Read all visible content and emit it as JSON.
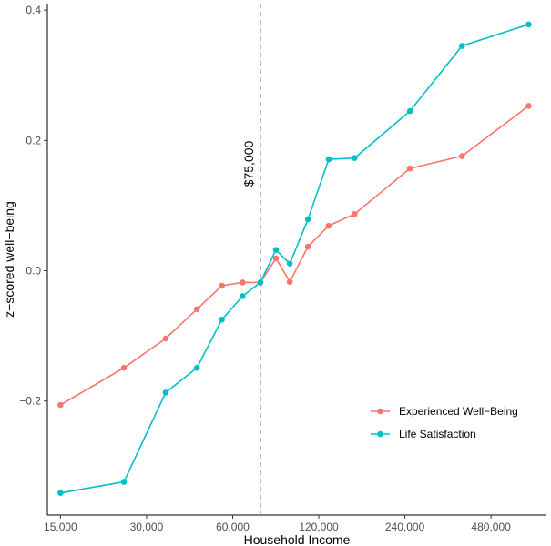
{
  "chart_data": {
    "type": "line",
    "title": "",
    "xlabel": "Household Income",
    "ylabel": "z−scored well−being",
    "x_scale": "log",
    "x_ticks": [
      15000,
      30000,
      60000,
      120000,
      240000,
      480000
    ],
    "x_tick_labels": [
      "15,000",
      "30,000",
      "60,000",
      "120,000",
      "240,000",
      "480,000"
    ],
    "xlim": [
      13500,
      750000
    ],
    "y_ticks": [
      -0.2,
      0.0,
      0.2,
      0.4
    ],
    "y_tick_labels": [
      "−0.2",
      "0.0",
      "0.2",
      "0.4"
    ],
    "ylim": [
      -0.375,
      0.41
    ],
    "grid": false,
    "legend_position": "bottom-right",
    "annotation": {
      "label": "$75,000",
      "x": 75000,
      "style": "dashed-vertical-line"
    },
    "colors": {
      "Experienced Well−Being": "#f8766d",
      "Life Satisfaction": "#00bfc4"
    },
    "series": [
      {
        "name": "Experienced Well−Being",
        "x": [
          15000,
          25000,
          35000,
          45000,
          55000,
          65000,
          75000,
          85000,
          95000,
          110000,
          130000,
          160000,
          250000,
          380000,
          650000
        ],
        "y": [
          -0.206,
          -0.149,
          -0.104,
          -0.059,
          -0.023,
          -0.018,
          -0.018,
          0.019,
          -0.017,
          0.037,
          0.069,
          0.087,
          0.157,
          0.176,
          0.253
        ]
      },
      {
        "name": "Life Satisfaction",
        "x": [
          15000,
          25000,
          35000,
          45000,
          55000,
          65000,
          75000,
          85000,
          95000,
          110000,
          130000,
          160000,
          250000,
          380000,
          650000
        ],
        "y": [
          -0.341,
          -0.324,
          -0.187,
          -0.149,
          -0.075,
          -0.039,
          -0.018,
          0.032,
          0.011,
          0.079,
          0.171,
          0.173,
          0.245,
          0.345,
          0.378
        ]
      }
    ]
  }
}
